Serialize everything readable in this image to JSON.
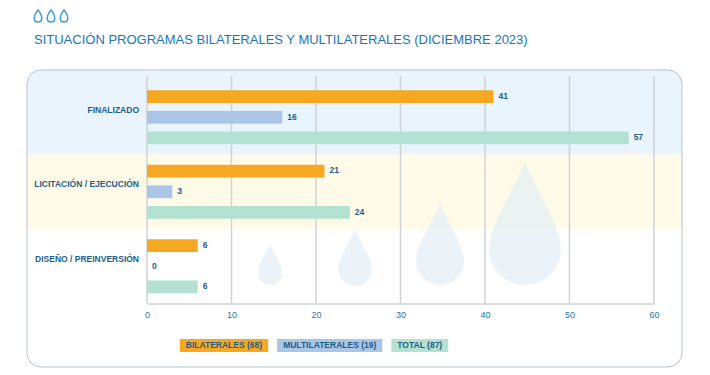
{
  "chart_data": {
    "type": "bar",
    "title": "SITUACIÓN PROGRAMAS BILATERALES Y MULTILATERALES (DICIEMBRE 2023)",
    "orientation": "horizontal",
    "categories": [
      "FINALIZADO",
      "LICITACIÓN / EJECUCIÓN",
      "DISEÑO / PREINVERSIÓN"
    ],
    "series": [
      {
        "name": "BILATERALES (68)",
        "color": "#f7a823",
        "values": [
          41,
          21,
          6
        ]
      },
      {
        "name": "MULTILATERALES (19)",
        "color": "#aac5e6",
        "values": [
          16,
          3,
          0
        ]
      },
      {
        "name": "TOTAL (87)",
        "color": "#b4e2d2",
        "values": [
          57,
          24,
          6
        ]
      }
    ],
    "xlim": [
      0,
      60
    ],
    "xticks": [
      0,
      10,
      20,
      30,
      40,
      50,
      60
    ],
    "grid": true,
    "data_labels": true,
    "legend": "bottom"
  }
}
